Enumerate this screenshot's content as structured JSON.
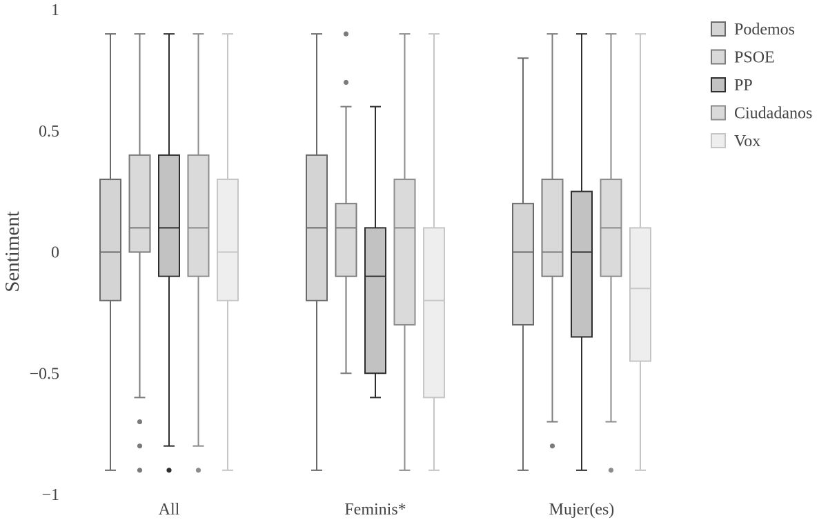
{
  "chart_data": {
    "type": "box",
    "title": "",
    "xlabel": "",
    "ylabel": "Sentiment",
    "ylim": [
      -1,
      1
    ],
    "yticks": [
      {
        "value": 1,
        "label": "1"
      },
      {
        "value": 0.5,
        "label": "0.5"
      },
      {
        "value": 0,
        "label": "0"
      },
      {
        "value": -0.5,
        "label": "−0.5"
      },
      {
        "value": -1,
        "label": "−1"
      }
    ],
    "grid": false,
    "legend_position": "top-right",
    "categories": [
      "All",
      "Feminis*",
      "Mujer(es)"
    ],
    "series": [
      {
        "name": "Podemos",
        "fill": "#d4d4d4",
        "stroke": "#6a6a6a",
        "boxes": [
          {
            "min": -0.9,
            "q1": -0.2,
            "median": 0,
            "q3": 0.3,
            "max": 0.9,
            "outliers": []
          },
          {
            "min": -0.9,
            "q1": -0.2,
            "median": 0.1,
            "q3": 0.4,
            "max": 0.9,
            "outliers": []
          },
          {
            "min": -0.9,
            "q1": -0.3,
            "median": 0,
            "q3": 0.2,
            "max": 0.8,
            "outliers": []
          }
        ]
      },
      {
        "name": "PSOE",
        "fill": "#d9d9d9",
        "stroke": "#7b7b7b",
        "boxes": [
          {
            "min": -0.6,
            "q1": 0,
            "median": 0.1,
            "q3": 0.4,
            "max": 0.9,
            "outliers": [
              -0.7,
              -0.8,
              -0.9
            ]
          },
          {
            "min": -0.5,
            "q1": -0.1,
            "median": 0.1,
            "q3": 0.2,
            "max": 0.6,
            "outliers": [
              0.7,
              0.9
            ]
          },
          {
            "min": -0.7,
            "q1": -0.1,
            "median": 0,
            "q3": 0.3,
            "max": 0.9,
            "outliers": [
              -0.8
            ]
          }
        ]
      },
      {
        "name": "PP",
        "fill": "#c2c2c2",
        "stroke": "#2e2e2e",
        "boxes": [
          {
            "min": -0.8,
            "q1": -0.1,
            "median": 0.1,
            "q3": 0.4,
            "max": 0.9,
            "outliers": [
              -0.9
            ]
          },
          {
            "min": -0.6,
            "q1": -0.5,
            "median": -0.1,
            "q3": 0.1,
            "max": 0.6,
            "outliers": []
          },
          {
            "min": -0.9,
            "q1": -0.35,
            "median": 0,
            "q3": 0.25,
            "max": 0.9,
            "outliers": []
          }
        ]
      },
      {
        "name": "Ciudadanos",
        "fill": "#dadada",
        "stroke": "#8c8c8c",
        "boxes": [
          {
            "min": -0.8,
            "q1": -0.1,
            "median": 0.1,
            "q3": 0.4,
            "max": 0.9,
            "outliers": [
              -0.9
            ]
          },
          {
            "min": -0.9,
            "q1": -0.3,
            "median": 0.1,
            "q3": 0.3,
            "max": 0.9,
            "outliers": []
          },
          {
            "min": -0.7,
            "q1": -0.1,
            "median": 0.1,
            "q3": 0.3,
            "max": 0.9,
            "outliers": [
              -0.9
            ]
          }
        ]
      },
      {
        "name": "Vox",
        "fill": "#eeeeee",
        "stroke": "#c6c6c6",
        "boxes": [
          {
            "min": -0.9,
            "q1": -0.2,
            "median": 0,
            "q3": 0.3,
            "max": 0.9,
            "outliers": []
          },
          {
            "min": -0.9,
            "q1": -0.6,
            "median": -0.2,
            "q3": 0.1,
            "max": 0.9,
            "outliers": []
          },
          {
            "min": -0.9,
            "q1": -0.45,
            "median": -0.15,
            "q3": 0.1,
            "max": 0.9,
            "outliers": []
          }
        ]
      }
    ]
  }
}
